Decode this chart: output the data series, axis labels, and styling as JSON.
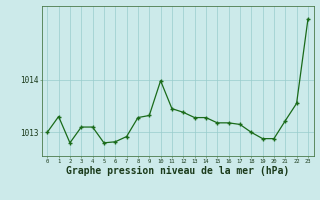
{
  "x": [
    0,
    1,
    2,
    3,
    4,
    5,
    6,
    7,
    8,
    9,
    10,
    11,
    12,
    13,
    14,
    15,
    16,
    17,
    18,
    19,
    20,
    21,
    22,
    23
  ],
  "y": [
    1013.0,
    1013.3,
    1012.8,
    1013.1,
    1013.1,
    1012.8,
    1012.82,
    1012.92,
    1013.28,
    1013.32,
    1013.98,
    1013.45,
    1013.38,
    1013.28,
    1013.28,
    1013.18,
    1013.18,
    1013.15,
    1013.0,
    1012.88,
    1012.88,
    1013.22,
    1013.55,
    1015.15
  ],
  "line_color": "#1a6b1a",
  "marker_color": "#1a6b1a",
  "bg_color": "#cceaea",
  "grid_color": "#99cccc",
  "ylabel_left": [
    "1013",
    "1014"
  ],
  "yticks": [
    1013.0,
    1014.0
  ],
  "xlabel": "Graphe pression niveau de la mer (hPa)",
  "xlabel_fontsize": 7,
  "xlim": [
    -0.5,
    23.5
  ],
  "ylim": [
    1012.55,
    1015.4
  ],
  "figsize": [
    3.2,
    2.0
  ],
  "dpi": 100
}
